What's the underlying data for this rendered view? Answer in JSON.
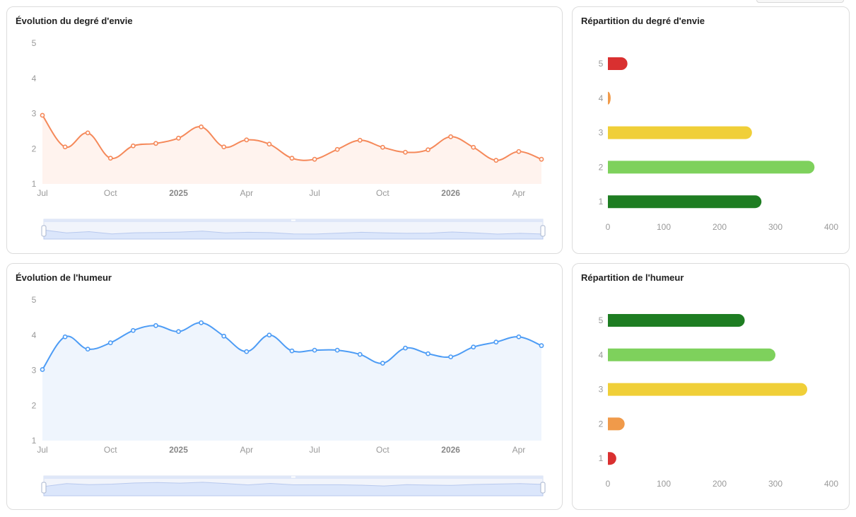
{
  "colors": {
    "envie_line": "#f5895a",
    "envie_area": "#fff3ee",
    "humeur_line": "#4d9cf5",
    "humeur_area": "#eff5fd",
    "slider_fill": "#dbe6fb",
    "slider_line": "#b8c9ee",
    "level_1_envie": "#1e7d22",
    "level_2_envie": "#7ed15c",
    "level_3": "#f0cf38",
    "level_4_envie": "#f09a4a",
    "level_5_envie": "#d93030"
  },
  "panels": {
    "envie_evolution": {
      "title": "Évolution du degré d'envie"
    },
    "envie_distribution": {
      "title": "Répartition du degré d'envie"
    },
    "humeur_evolution": {
      "title": "Évolution de l'humeur"
    },
    "humeur_distribution": {
      "title": "Répartition de l'humeur"
    }
  },
  "chart_data": [
    {
      "id": "envie_evolution",
      "type": "area",
      "title": "Évolution du degré d'envie",
      "x_tick_labels": [
        "Jul",
        "Oct",
        "2025",
        "Apr",
        "Jul",
        "Oct",
        "2026",
        "Apr"
      ],
      "x_tick_bold": [
        false,
        false,
        true,
        false,
        false,
        false,
        true,
        false
      ],
      "y_ticks": [
        1,
        2,
        3,
        4,
        5
      ],
      "ylim": [
        1,
        5
      ],
      "values": [
        2.95,
        2.05,
        2.45,
        1.73,
        2.08,
        2.15,
        2.3,
        2.62,
        2.05,
        2.25,
        2.13,
        1.73,
        1.7,
        1.98,
        2.24,
        2.04,
        1.9,
        1.97,
        2.34,
        2.04,
        1.67,
        1.92,
        1.7
      ],
      "grid": false,
      "data_zoom": true
    },
    {
      "id": "envie_distribution",
      "type": "bar",
      "orientation": "horizontal",
      "title": "Répartition du degré d'envie",
      "categories": [
        "1",
        "2",
        "3",
        "4",
        "5"
      ],
      "values": [
        275,
        370,
        258,
        5,
        35
      ],
      "xlim": [
        0,
        400
      ],
      "x_ticks": [
        0,
        100,
        200,
        300,
        400
      ],
      "bar_colors": [
        "#1e7d22",
        "#7ed15c",
        "#f0cf38",
        "#f09a4a",
        "#d93030"
      ]
    },
    {
      "id": "humeur_evolution",
      "type": "area",
      "title": "Évolution de l'humeur",
      "x_tick_labels": [
        "Jul",
        "Oct",
        "2025",
        "Apr",
        "Jul",
        "Oct",
        "2026",
        "Apr"
      ],
      "x_tick_bold": [
        false,
        false,
        true,
        false,
        false,
        false,
        true,
        false
      ],
      "y_ticks": [
        1,
        2,
        3,
        4,
        5
      ],
      "ylim": [
        1,
        5
      ],
      "values": [
        3.02,
        3.95,
        3.6,
        3.78,
        4.13,
        4.27,
        4.1,
        4.35,
        3.97,
        3.53,
        4.0,
        3.55,
        3.57,
        3.57,
        3.45,
        3.2,
        3.63,
        3.47,
        3.38,
        3.66,
        3.8,
        3.95,
        3.7
      ],
      "grid": false,
      "data_zoom": true
    },
    {
      "id": "humeur_distribution",
      "type": "bar",
      "orientation": "horizontal",
      "title": "Répartition de l'humeur",
      "categories": [
        "1",
        "2",
        "3",
        "4",
        "5"
      ],
      "values": [
        15,
        30,
        357,
        300,
        245
      ],
      "xlim": [
        0,
        400
      ],
      "x_ticks": [
        0,
        100,
        200,
        300,
        400
      ],
      "bar_colors": [
        "#d93030",
        "#f09a4a",
        "#f0cf38",
        "#7ed15c",
        "#1e7d22"
      ]
    }
  ]
}
